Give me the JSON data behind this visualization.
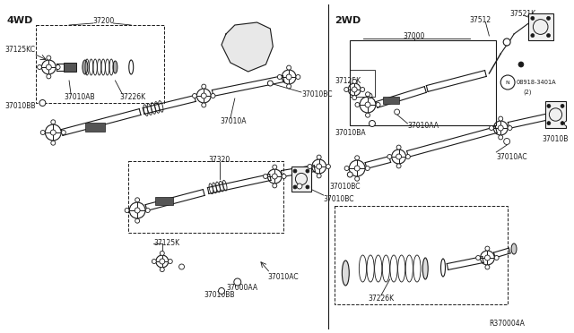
{
  "bg_color": "#ffffff",
  "line_color": "#1a1a1a",
  "ref_code": "R370004A",
  "section_4wd": "4WD",
  "section_2wd": "2WD",
  "figsize": [
    6.4,
    3.72
  ],
  "dpi": 100
}
